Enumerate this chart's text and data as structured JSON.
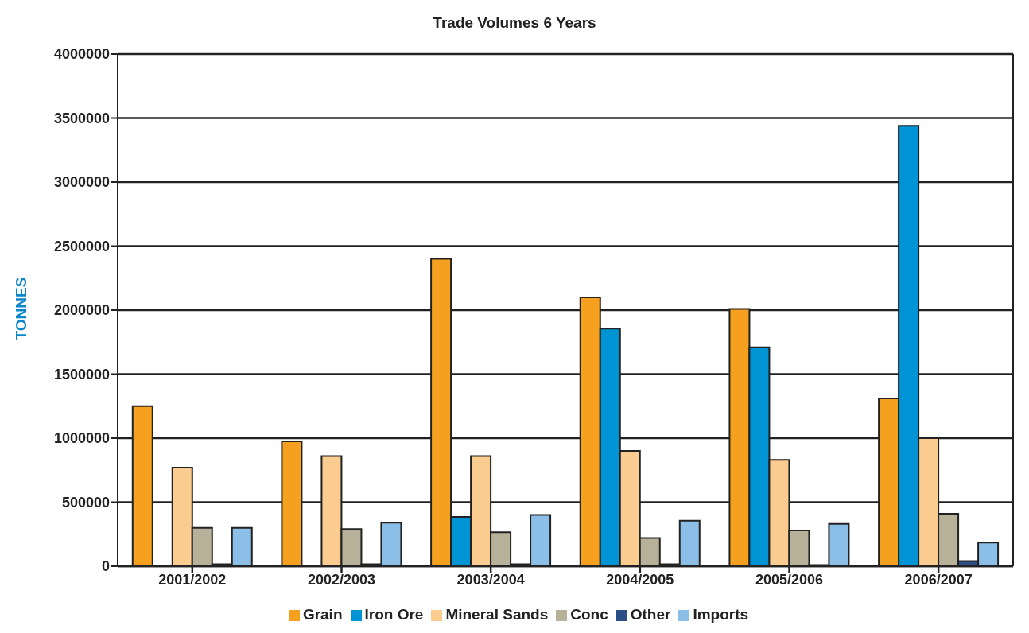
{
  "chart_data": {
    "type": "bar",
    "title": "Trade Volumes 6 Years",
    "ylabel": "TONNES",
    "categories": [
      "2001/2002",
      "2002/2003",
      "2003/2004",
      "2004/2005",
      "2005/2006",
      "2006/2007"
    ],
    "series": [
      {
        "name": "Grain",
        "color": "#f5a01e",
        "values": [
          1250000,
          975000,
          2400000,
          2100000,
          2010000,
          1310000
        ]
      },
      {
        "name": "Iron Ore",
        "color": "#0094d4",
        "values": [
          null,
          null,
          385000,
          1855000,
          1710000,
          3440000
        ]
      },
      {
        "name": "Mineral Sands",
        "color": "#fbcc8f",
        "values": [
          770000,
          860000,
          860000,
          900000,
          830000,
          1000000
        ]
      },
      {
        "name": "Conc",
        "color": "#b8b199",
        "values": [
          300000,
          290000,
          265000,
          220000,
          280000,
          410000
        ]
      },
      {
        "name": "Other",
        "color": "#2b4f84",
        "values": [
          15000,
          15000,
          15000,
          15000,
          10000,
          40000
        ]
      },
      {
        "name": "Imports",
        "color": "#8cbfe7",
        "values": [
          300000,
          340000,
          400000,
          355000,
          330000,
          185000
        ]
      }
    ],
    "ylim": [
      0,
      4000000
    ],
    "yticks": [
      0,
      500000,
      1000000,
      1500000,
      2000000,
      2500000,
      3000000,
      3500000,
      4000000
    ],
    "grid": "y",
    "legend": "bottom"
  }
}
